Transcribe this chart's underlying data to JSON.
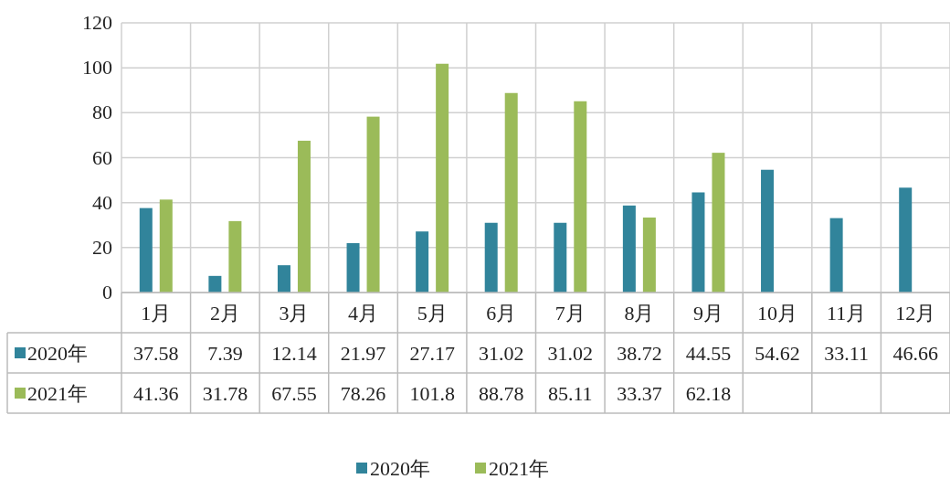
{
  "chart_data": {
    "type": "bar",
    "categories": [
      "1月",
      "2月",
      "3月",
      "4月",
      "5月",
      "6月",
      "7月",
      "8月",
      "9月",
      "10月",
      "11月",
      "12月"
    ],
    "series": [
      {
        "name": "2020年",
        "color": "#31849b",
        "values": [
          37.58,
          7.39,
          12.14,
          21.97,
          27.17,
          31.02,
          31.02,
          38.72,
          44.55,
          54.62,
          33.11,
          46.66
        ]
      },
      {
        "name": "2021年",
        "color": "#9bbb59",
        "values": [
          41.36,
          31.78,
          67.55,
          78.26,
          101.8,
          88.78,
          85.11,
          33.37,
          62.18,
          null,
          null,
          null
        ]
      }
    ],
    "ylim": [
      0,
      120
    ],
    "yticks": [
      0,
      20,
      40,
      60,
      80,
      100,
      120
    ],
    "grid": true,
    "data_labels": true,
    "legend": "bottom"
  }
}
